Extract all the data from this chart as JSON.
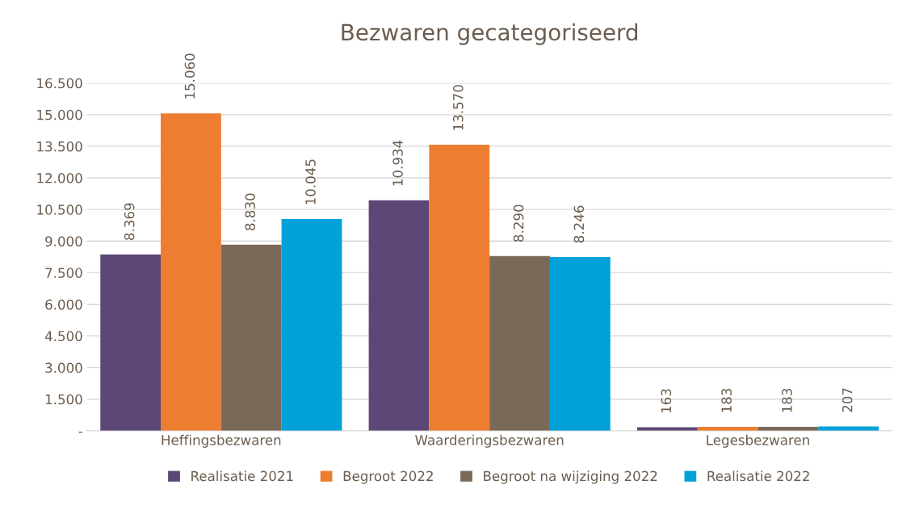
{
  "chart_data": {
    "type": "bar",
    "title": "Bezwaren gecategoriseerd",
    "categories": [
      "Heffingsbezwaren",
      "Waarderingsbezwaren",
      "Legesbezwaren"
    ],
    "series": [
      {
        "name": "Realisatie 2021",
        "color": "#5c4776",
        "values": [
          8369,
          10934,
          163
        ],
        "value_labels": [
          "8.369",
          "10.934",
          "163"
        ]
      },
      {
        "name": "Begroot 2022",
        "color": "#ed7d31",
        "values": [
          15060,
          13570,
          183
        ],
        "value_labels": [
          "15.060",
          "13.570",
          "183"
        ]
      },
      {
        "name": "Begroot na wijziging 2022",
        "color": "#786958",
        "values": [
          8830,
          8290,
          183
        ],
        "value_labels": [
          "8.830",
          "8.290",
          "183"
        ]
      },
      {
        "name": "Realisatie 2022",
        "color": "#00a0d8",
        "values": [
          10045,
          8246,
          207
        ],
        "value_labels": [
          "10.045",
          "8.246",
          "207"
        ]
      }
    ],
    "ylim": [
      0,
      16500
    ],
    "yticks": [
      {
        "value": 0,
        "label": "-"
      },
      {
        "value": 1500,
        "label": "1.500"
      },
      {
        "value": 3000,
        "label": "3.000"
      },
      {
        "value": 4500,
        "label": "4.500"
      },
      {
        "value": 6000,
        "label": "6.000"
      },
      {
        "value": 7500,
        "label": "7.500"
      },
      {
        "value": 9000,
        "label": "9.000"
      },
      {
        "value": 10500,
        "label": "10.500"
      },
      {
        "value": 12000,
        "label": "12.000"
      },
      {
        "value": 13500,
        "label": "13.500"
      },
      {
        "value": 15000,
        "label": "15.000"
      },
      {
        "value": 16500,
        "label": "16.500"
      }
    ],
    "grid": "y",
    "legend": "bottom"
  }
}
